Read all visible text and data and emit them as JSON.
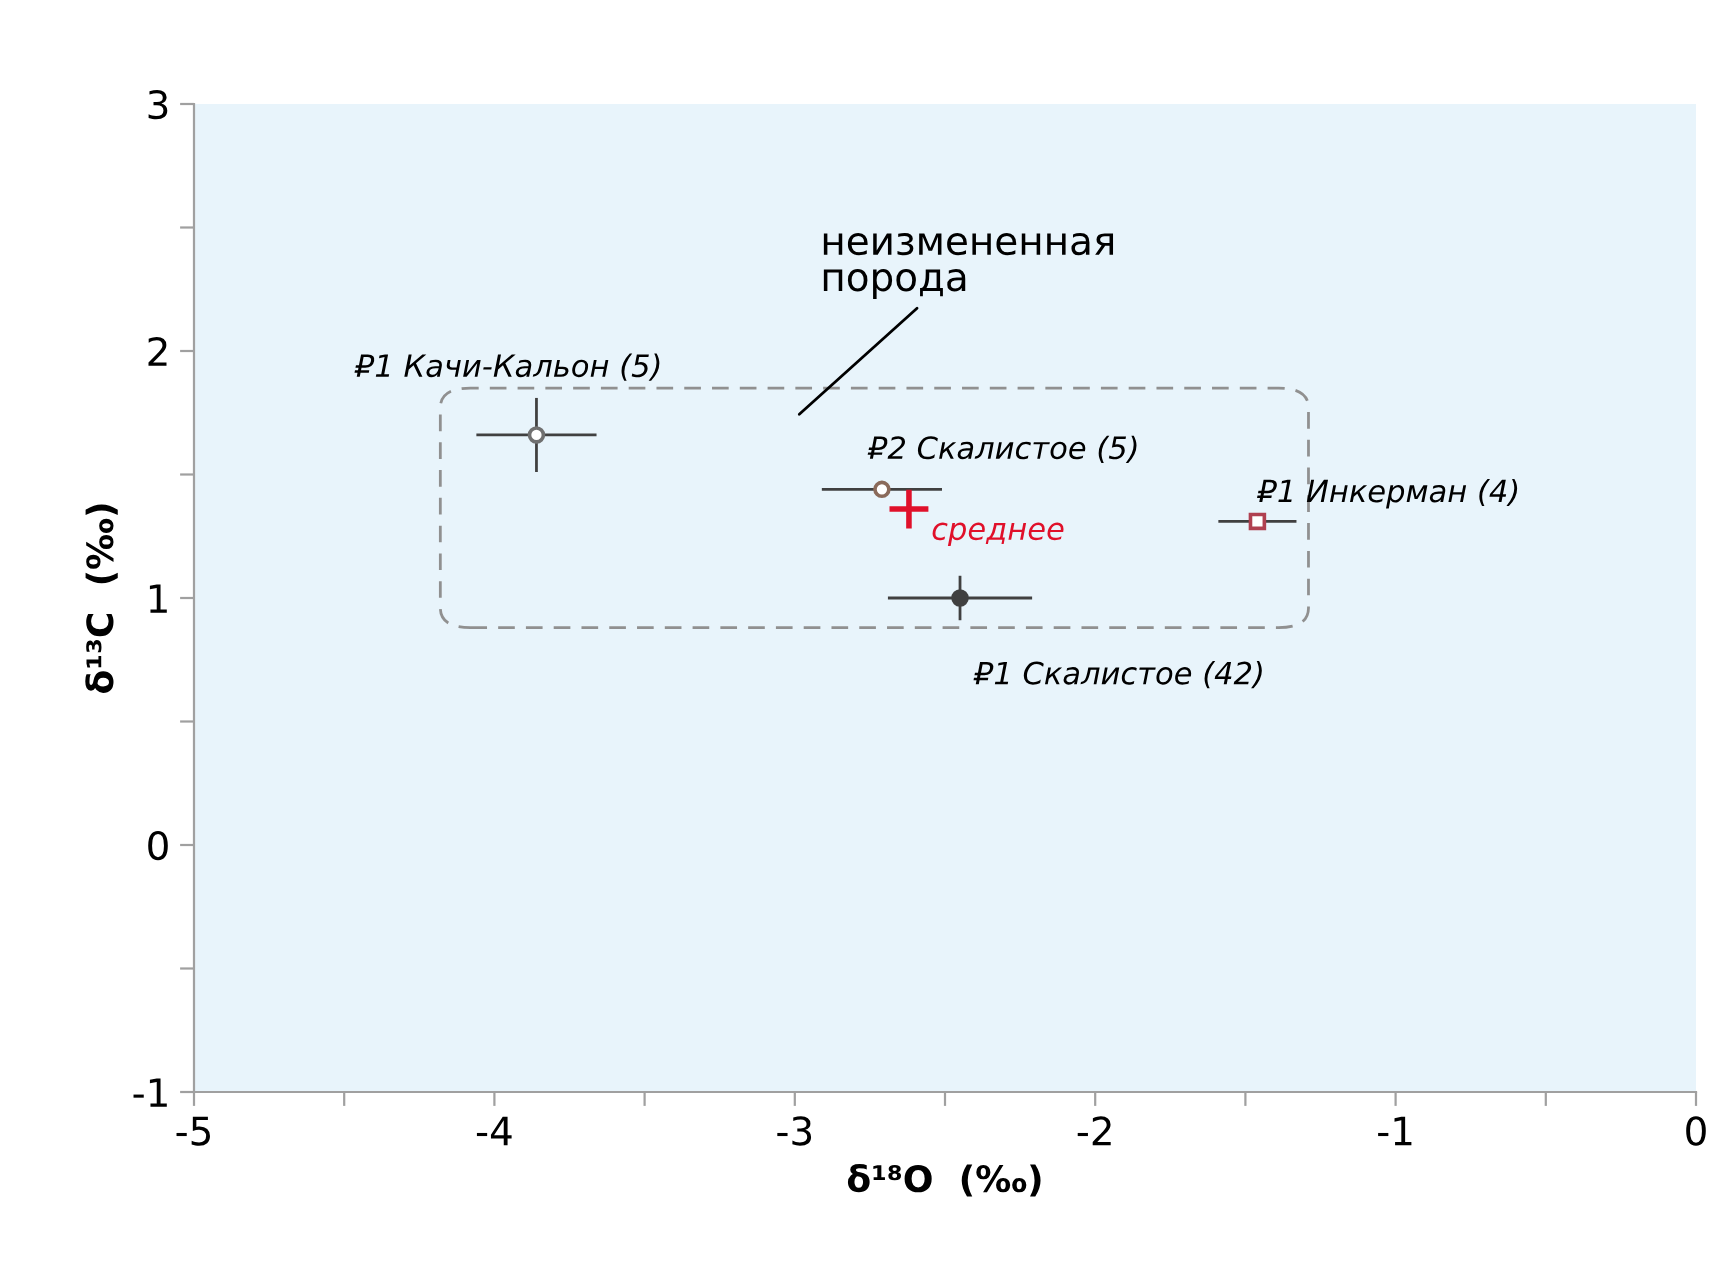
{
  "chart_data": {
    "type": "scatter",
    "xlabel": "δ¹⁸O  (‰)",
    "ylabel": "δ¹³C  (‰)",
    "xlim": [
      -5,
      0
    ],
    "xticks": [
      -5,
      {
        "value": -4.5,
        "label": null
      },
      -4,
      {
        "value": -3.5,
        "label": null
      },
      -3,
      {
        "value": -2.5,
        "label": null
      },
      -2,
      {
        "value": -1.5,
        "label": null
      },
      -1,
      {
        "value": -0.5,
        "label": null
      },
      0
    ],
    "ylim": [
      -1,
      3
    ],
    "yticks": [
      -1,
      {
        "value": -0.5,
        "label": null
      },
      0,
      {
        "value": 0.5,
        "label": null
      },
      1,
      {
        "value": 1.5,
        "label": null
      },
      2,
      {
        "value": 2.5,
        "label": null
      },
      3
    ],
    "grid": false,
    "legend": false,
    "series": [
      {
        "name": "₽1 Качи-Кальон (5)",
        "color": "#707070",
        "marker": "circle",
        "x": [
          -3.86
        ],
        "values": [
          1.66
        ],
        "xerrors": [
          0.2
        ],
        "errors": [
          0.15
        ]
      },
      {
        "name": "₽2 Скалистое (5)",
        "color": "#8a6a5a",
        "marker": "circle",
        "x": [
          -2.71
        ],
        "values": [
          1.44
        ],
        "xerrors": [
          0.2
        ],
        "errors": [
          0.03
        ]
      },
      {
        "name": "среднее",
        "color": "#e0102a",
        "marker": "cross",
        "x": [
          -2.62
        ],
        "values": [
          1.36
        ]
      },
      {
        "name": "₽1 Скалистое (42)",
        "color": "#404040",
        "marker": "circle",
        "x": [
          -2.45
        ],
        "values": [
          1.0
        ],
        "xerrors": [
          0.24
        ],
        "errors": [
          0.09
        ]
      },
      {
        "name": "₽1 Инкерман (4)",
        "color": "#b04050",
        "marker": "square",
        "x": [
          -1.46
        ],
        "values": [
          1.31
        ],
        "xerrors": [
          0.13
        ]
      }
    ],
    "annotations": [
      "неизмененная\nпорода"
    ]
  }
}
